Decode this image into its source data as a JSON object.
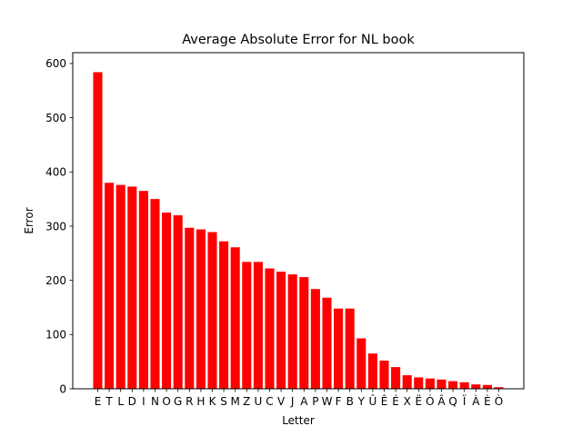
{
  "chart_data": {
    "type": "bar",
    "title": "Average Absolute Error for NL book",
    "xlabel": "Letter",
    "ylabel": "Error",
    "bar_color": "#ff0000",
    "ylim": [
      0,
      620
    ],
    "yticks": [
      0,
      100,
      200,
      300,
      400,
      500,
      600
    ],
    "grid": false,
    "categories": [
      "E",
      "T",
      "L",
      "D",
      "I",
      "N",
      "O",
      "G",
      "R",
      "H",
      "K",
      "S",
      "M",
      "Z",
      "U",
      "C",
      "V",
      "J",
      "A",
      "P",
      "W",
      "F",
      "B",
      "Y",
      "Û",
      "Ê",
      "É",
      "X",
      "Ë",
      "Ó",
      "Â",
      "Q",
      "Ï",
      "À",
      "È",
      "Ò"
    ],
    "values": [
      584,
      380,
      376,
      373,
      365,
      350,
      325,
      320,
      297,
      294,
      289,
      272,
      261,
      234,
      234,
      222,
      216,
      211,
      206,
      184,
      168,
      148,
      148,
      93,
      65,
      52,
      40,
      25,
      21,
      19,
      17,
      14,
      12,
      8,
      7,
      3
    ]
  }
}
